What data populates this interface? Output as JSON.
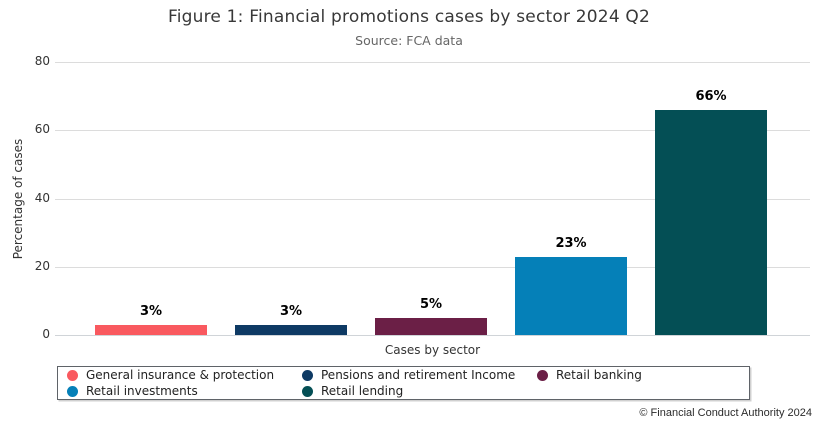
{
  "header": {
    "title": "Figure 1: Financial promotions cases by sector 2024 Q2",
    "subtitle": "Source: FCA data"
  },
  "footer": {
    "copyright": "© Financial Conduct Authority 2024"
  },
  "chart_data": {
    "type": "bar",
    "title": "Figure 1: Financial promotions cases by sector 2024 Q2",
    "subtitle": "Source: FCA data",
    "xlabel": "Cases by sector",
    "ylabel": "Percentage of cases",
    "ylim": [
      0,
      80
    ],
    "yticks": [
      0,
      20,
      40,
      60,
      80
    ],
    "grid": true,
    "legend_position": "bottom",
    "categories": [
      "General insurance & protection",
      "Pensions and retirement Income",
      "Retail banking",
      "Retail investments",
      "Retail lending"
    ],
    "values": [
      3,
      3,
      5,
      23,
      66
    ],
    "value_label_suffix": "%",
    "colors": [
      "#F9595F",
      "#0E3A64",
      "#6B1F46",
      "#0580B8",
      "#044F55"
    ]
  }
}
